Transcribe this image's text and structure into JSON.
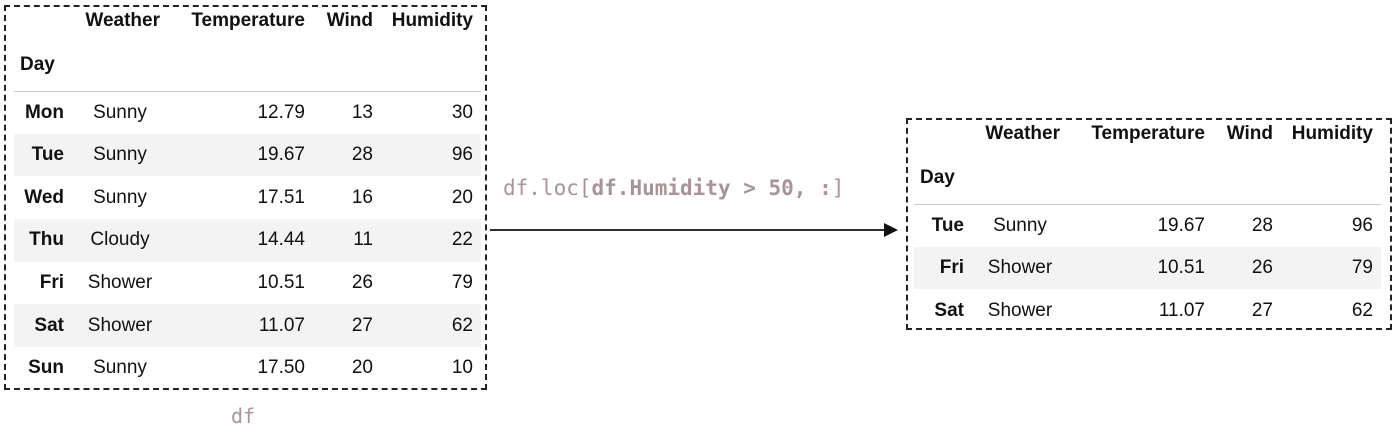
{
  "source_table": {
    "caption": "df",
    "index_name": "Day",
    "columns": [
      "Weather",
      "Temperature",
      "Wind",
      "Humidity"
    ],
    "rows": [
      {
        "day": "Mon",
        "weather": "Sunny",
        "temperature": "12.79",
        "wind": "13",
        "humidity": "30"
      },
      {
        "day": "Tue",
        "weather": "Sunny",
        "temperature": "19.67",
        "wind": "28",
        "humidity": "96"
      },
      {
        "day": "Wed",
        "weather": "Sunny",
        "temperature": "17.51",
        "wind": "16",
        "humidity": "20"
      },
      {
        "day": "Thu",
        "weather": "Cloudy",
        "temperature": "14.44",
        "wind": "11",
        "humidity": "22"
      },
      {
        "day": "Fri",
        "weather": "Shower",
        "temperature": "10.51",
        "wind": "26",
        "humidity": "79"
      },
      {
        "day": "Sat",
        "weather": "Shower",
        "temperature": "11.07",
        "wind": "27",
        "humidity": "62"
      },
      {
        "day": "Sun",
        "weather": "Sunny",
        "temperature": "17.50",
        "wind": "20",
        "humidity": "10"
      }
    ]
  },
  "operation": {
    "prefix": "df.loc[",
    "condition": "df.Humidity > 50, :",
    "suffix": "]"
  },
  "result_table": {
    "index_name": "Day",
    "columns": [
      "Weather",
      "Temperature",
      "Wind",
      "Humidity"
    ],
    "rows": [
      {
        "day": "Tue",
        "weather": "Sunny",
        "temperature": "19.67",
        "wind": "28",
        "humidity": "96"
      },
      {
        "day": "Fri",
        "weather": "Shower",
        "temperature": "10.51",
        "wind": "26",
        "humidity": "79"
      },
      {
        "day": "Sat",
        "weather": "Shower",
        "temperature": "11.07",
        "wind": "27",
        "humidity": "62"
      }
    ]
  },
  "colors": {
    "code_text": "#a89496",
    "frame_border": "#222222",
    "row_stripe": "#f3f3f3"
  }
}
